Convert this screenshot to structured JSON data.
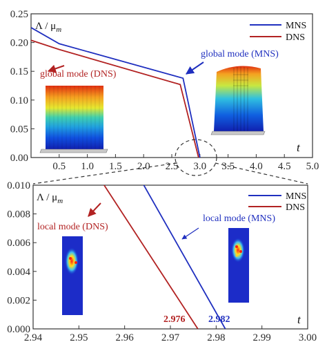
{
  "chart_data": [
    {
      "type": "line",
      "ylabel": "Λ / μm",
      "ylabel_main": "Λ / μ",
      "ylabel_sub": "m",
      "xlabel": "t",
      "xlim": [
        0.0,
        5.0
      ],
      "ylim": [
        0.0,
        0.25
      ],
      "xticks": [
        "0.5",
        "1.0",
        "1.5",
        "2.0",
        "2.5",
        "3.0",
        "3.5",
        "4.0",
        "4.5",
        "5.0"
      ],
      "yticks": [
        "0.00",
        "0.05",
        "0.10",
        "0.15",
        "0.20",
        "0.25"
      ],
      "legend_position": "top-right",
      "series": [
        {
          "name": "MNS",
          "color": "#1f2fbf",
          "x": [
            0.0,
            0.5,
            2.7,
            3.0
          ],
          "y": [
            0.226,
            0.198,
            0.138,
            0.0
          ]
        },
        {
          "name": "DNS",
          "color": "#b22222",
          "x": [
            0.0,
            0.5,
            2.65,
            2.976
          ],
          "y": [
            0.204,
            0.188,
            0.127,
            0.0
          ]
        }
      ],
      "annotations": [
        {
          "text": "global mode (DNS)",
          "color": "#b22222"
        },
        {
          "text": "global mode (MNS)",
          "color": "#1f2fbf"
        }
      ]
    },
    {
      "type": "line",
      "ylabel": "Λ / μm",
      "ylabel_main": "Λ / μ",
      "ylabel_sub": "m",
      "xlabel": "t",
      "xlim": [
        2.94,
        3.0
      ],
      "ylim": [
        0.0,
        0.01
      ],
      "xticks": [
        "2.94",
        "2.95",
        "2.96",
        "2.97",
        "2.98",
        "2.99",
        "3.00"
      ],
      "yticks": [
        "0.000",
        "0.002",
        "0.004",
        "0.006",
        "0.008",
        "0.010"
      ],
      "legend_position": "top-right",
      "series": [
        {
          "name": "MNS",
          "color": "#1f2fbf",
          "x": [
            2.9633,
            2.982
          ],
          "y": [
            0.0105,
            0.0
          ]
        },
        {
          "name": "DNS",
          "color": "#b22222",
          "x": [
            2.9545,
            2.976
          ],
          "y": [
            0.0105,
            0.0
          ]
        }
      ],
      "annotations": [
        {
          "text": "local mode (DNS)",
          "color": "#b22222"
        },
        {
          "text": "local mode (MNS)",
          "color": "#1f2fbf"
        },
        {
          "text": "2.976",
          "color": "#b22222"
        },
        {
          "text": "2.982",
          "color": "#1f2fbf"
        }
      ]
    }
  ]
}
